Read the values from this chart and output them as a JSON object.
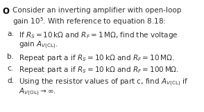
{
  "background_color": "#ffffff",
  "bullet": "O",
  "intro_line1": "Consider an inverting amplifier with open-loop",
  "intro_line2": "gain 10$^5$. With reference to equation 8.18:",
  "items": [
    {
      "label": "a.",
      "line1": "If $R_S = 10\\,\\mathrm{k\\Omega}$ and $R_F = 1\\,\\mathrm{M\\Omega}$, find the voltage",
      "line2": "gain $A_{V(\\mathrm{CL})}$."
    },
    {
      "label": "b.",
      "line1": "Repeat part a if $R_S = 10\\,\\mathrm{k\\Omega}$ and $R_F = 10\\,\\mathrm{M\\Omega}$."
    },
    {
      "label": "c.",
      "line1": "Repeat part a if $R_S = 10\\,\\mathrm{k\\Omega}$ and $R_F = 100\\,\\mathrm{M\\Omega}$."
    },
    {
      "label": "d.",
      "line1": "Using the resistor values of part c, find $A_{V(\\mathrm{CL})}$ if",
      "line2": "$A_{V(\\mathrm{OL})} \\rightarrow \\infty$."
    }
  ],
  "font_size": 7.5,
  "text_color": "#2e2e2e",
  "bullet_color": "#000000",
  "figw": 2.94,
  "figh": 1.62,
  "dpi": 100
}
